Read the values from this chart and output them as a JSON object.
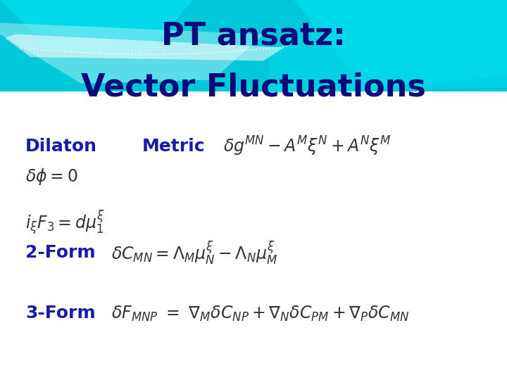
{
  "title_line1": "PT ansatz:",
  "title_line2": "Vector Fluctuations",
  "title_color": "#0a0a7a",
  "title_fontsize": 32,
  "bg_color": "#ffffff",
  "label_color": "#1a1aaa",
  "label_fontsize": 18,
  "eq_fontsize": 17,
  "dilaton_label": "Dilaton",
  "metric_label": "Metric",
  "twoform_label": "2-Form",
  "threeform_label": "3-Form",
  "header_color": "#00c8d8",
  "wave1_color": "#00e0f0",
  "wave2_color": "#b0f0f8",
  "wave3_color": "#00d8ec",
  "eq_color": "#333333"
}
